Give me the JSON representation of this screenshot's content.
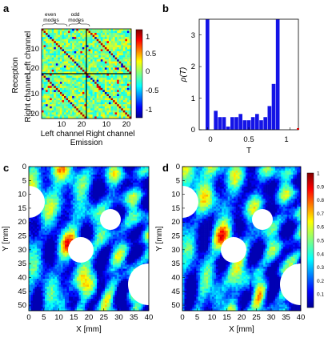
{
  "panels": {
    "a": {
      "letter": "a",
      "annotations": {
        "even_modes": "even\nmodes",
        "odd_modes": "odd\nmodes"
      },
      "ylabel_outer": "Reception",
      "ylabel_left_channel": "Left channel",
      "ylabel_right_channel": "Right channel",
      "xlabel_left_channel": "Left channel",
      "xlabel_right_channel": "Right channel",
      "xlabel_emission": "Emission",
      "yticks_top": [
        "10",
        "20"
      ],
      "yticks_bottom": [
        "10",
        "20"
      ],
      "xticks": [
        "10",
        "20",
        "10",
        "20"
      ],
      "colorbar_ticks": [
        "1",
        "0.5",
        "0",
        "-0.5",
        "-1"
      ]
    },
    "b": {
      "letter": "b",
      "ylabel": "ρ(T)",
      "xlabel": "T",
      "xticks": [
        "0",
        "0.5",
        "1"
      ],
      "yticks": [
        "0",
        "1",
        "2",
        "3"
      ]
    },
    "c": {
      "letter": "c",
      "ylabel": "Y [mm]",
      "xlabel": "X [mm]",
      "xticks": [
        "0",
        "5",
        "10",
        "15",
        "20",
        "25",
        "30",
        "35",
        "40"
      ],
      "yticks": [
        "0",
        "5",
        "10",
        "15",
        "20",
        "25",
        "30",
        "35",
        "40",
        "45",
        "50"
      ]
    },
    "d": {
      "letter": "d",
      "ylabel": "Y [mm]",
      "xlabel": "X [mm]",
      "xticks": [
        "0",
        "5",
        "10",
        "15",
        "20",
        "25",
        "30",
        "35",
        "40"
      ],
      "yticks": [
        "0",
        "5",
        "10",
        "15",
        "20",
        "25",
        "30",
        "35",
        "40",
        "45",
        "50"
      ],
      "colorbar_ticks": [
        "1",
        "0.9",
        "0.8",
        "0.7",
        "0.6",
        "0.5",
        "0.4",
        "0.3",
        "0.2",
        "0.1"
      ]
    }
  },
  "chart_data": [
    {
      "type": "heatmap",
      "panel": "a",
      "description_value_range": [
        -1,
        1
      ],
      "grid_blocks": [
        "even-even",
        "even-odd",
        "odd-even",
        "odd-odd"
      ],
      "colorbar_range": [
        -1,
        1
      ]
    },
    {
      "type": "bar",
      "panel": "b",
      "xlabel": "T",
      "ylabel": "ρ(T)",
      "xlim": [
        -0.1,
        1.1
      ],
      "ylim": [
        0,
        3.5
      ],
      "x": [
        0.0,
        0.05,
        0.1,
        0.15,
        0.2,
        0.25,
        0.3,
        0.35,
        0.4,
        0.45,
        0.5,
        0.55,
        0.6,
        0.65,
        0.7,
        0.75,
        0.8,
        0.85,
        0.9,
        0.95,
        1.0
      ],
      "values": [
        3.5,
        0,
        0.6,
        0.4,
        0.4,
        0.1,
        0.4,
        0.4,
        0.5,
        0.3,
        0.3,
        0.4,
        0.5,
        0.3,
        0.4,
        0.75,
        1.45,
        3.5,
        0,
        0,
        0
      ]
    },
    {
      "type": "heatmap",
      "panel": "c",
      "xlabel": "X [mm]",
      "ylabel": "Y [mm]",
      "xlim": [
        0,
        40
      ],
      "ylim": [
        0,
        52
      ],
      "colorbar_range": [
        0,
        1
      ]
    },
    {
      "type": "heatmap",
      "panel": "d",
      "xlabel": "X [mm]",
      "ylabel": "Y [mm]",
      "xlim": [
        0,
        40
      ],
      "ylim": [
        0,
        52
      ],
      "colorbar_range": [
        0,
        1
      ]
    }
  ]
}
